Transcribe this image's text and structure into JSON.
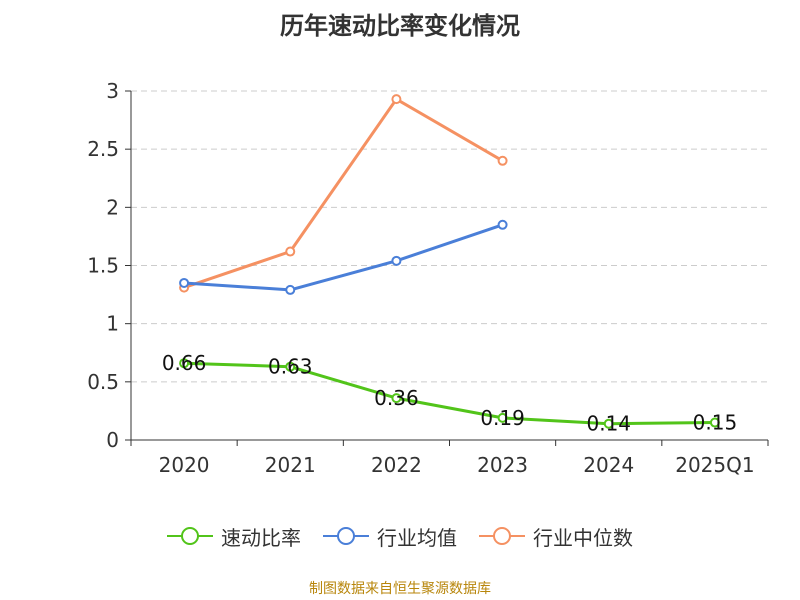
{
  "title": "历年速动比率变化情况",
  "source": "制图数据来自恒生聚源数据库",
  "colors": {
    "quick_ratio": "#52c41a",
    "industry_avg": "#4a7fd8",
    "industry_median": "#f59162",
    "grid": "#cccccc",
    "axis": "#333333"
  },
  "chart_data": {
    "type": "line",
    "categories": [
      "2020",
      "2021",
      "2022",
      "2023",
      "2024",
      "2025Q1"
    ],
    "ylim": [
      0,
      3
    ],
    "yticks": [
      "0",
      "0.5",
      "1",
      "1.5",
      "2",
      "2.5",
      "3"
    ],
    "grid": true,
    "legend_position": "bottom",
    "series": [
      {
        "name": "速动比率",
        "values": [
          0.66,
          0.63,
          0.36,
          0.19,
          0.14,
          0.15
        ],
        "labels": [
          "0.66",
          "0.63",
          "0.36",
          "0.19",
          "0.14",
          "0.15"
        ],
        "color": "#52c41a"
      },
      {
        "name": "行业均值",
        "values": [
          1.35,
          1.29,
          1.54,
          1.85,
          null,
          null
        ],
        "color": "#4a7fd8"
      },
      {
        "name": "行业中位数",
        "values": [
          1.31,
          1.62,
          2.93,
          2.4,
          null,
          null
        ],
        "color": "#f59162"
      }
    ]
  }
}
